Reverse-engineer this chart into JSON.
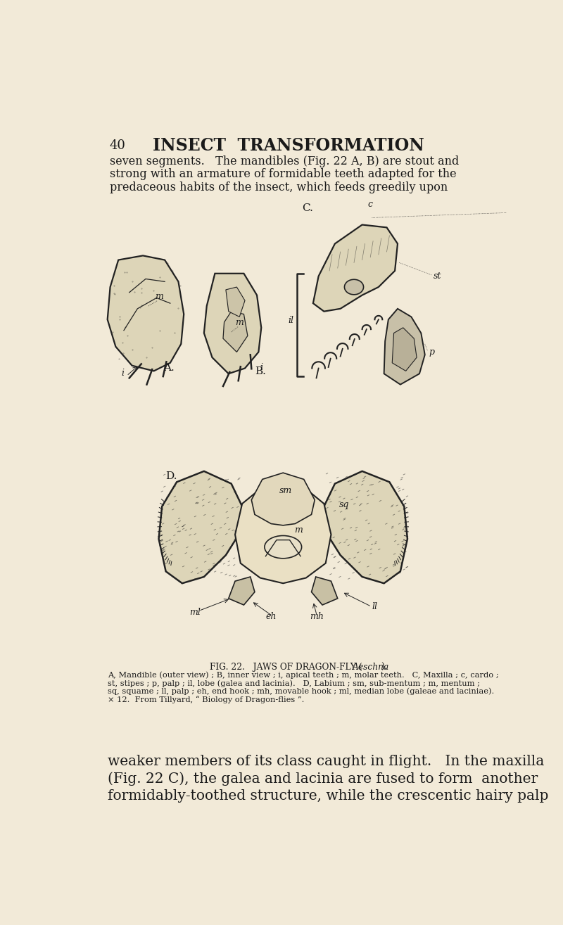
{
  "background_color": "#f2ead8",
  "page_number": "40",
  "title": "INSECT  TRANSFORMATION",
  "top_paragraph": "seven segments.   The mandibles (Fig. 22 A, B) are stout and\nstrong with an armature of formidable teeth adapted for the\npredaceous habits of the insect, which feeds greedily upon",
  "fig_caption_body": "A, Mandible (outer view) ; B, inner view ; i, apical teeth ; m, molar teeth.   C, Maxilla ; c, cardo ;\nst, stipes ; p, palp ; il, lobe (galea and lacinia).   D, Labium ; sm, sub-mentum ; m, mentum ;\nsq, squame ; ll, palp ; eh, end hook ; mh, movable hook ; ml, median lobe (galeae and laciniae).\n× 12.  From Tillyard, “ Biology of Dragon-flies ”.",
  "bottom_paragraph": "weaker members of its class caught in flight.   In the maxilla\n(Fig. 22 C), the galea and lacinia are fused to form  another\nformidably-toothed structure, while the crescentic hairy palp",
  "text_color": "#1a1a1a",
  "draw_color": "#222222"
}
